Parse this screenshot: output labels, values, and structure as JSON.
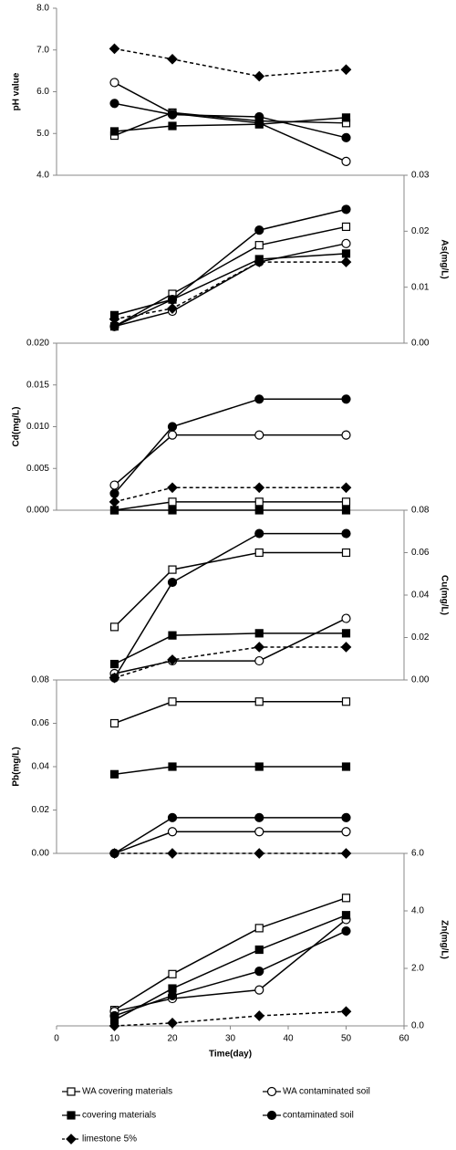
{
  "chart_data": [
    {
      "type": "line",
      "y_label": "pH value",
      "y_axis_side": "left",
      "x": [
        10,
        20,
        35,
        50
      ],
      "ylim": [
        4,
        8
      ],
      "yticks": [
        {
          "value": 4,
          "label": "4.0"
        },
        {
          "value": 5,
          "label": "5.0"
        },
        {
          "value": 6,
          "label": "6.0"
        },
        {
          "value": 7,
          "label": "7.0"
        },
        {
          "value": 8,
          "label": "8.0"
        }
      ],
      "series": [
        {
          "name": "WA covering materials",
          "color": "#000000",
          "marker": "square",
          "filled": false,
          "dashed": false,
          "values": [
            4.95,
            5.5,
            5.3,
            5.25
          ]
        },
        {
          "name": "WA contaminated soil",
          "color": "#000000",
          "marker": "circle",
          "filled": false,
          "dashed": false,
          "values": [
            6.22,
            5.48,
            5.25,
            4.33
          ]
        },
        {
          "name": "covering materials",
          "color": "#000000",
          "marker": "square",
          "filled": true,
          "dashed": false,
          "values": [
            5.05,
            5.18,
            5.22,
            5.38
          ]
        },
        {
          "name": "contaminated soil",
          "color": "#000000",
          "marker": "circle",
          "filled": true,
          "dashed": false,
          "values": [
            5.72,
            5.45,
            5.4,
            4.9
          ]
        },
        {
          "name": "limestone 5%",
          "color": "#000000",
          "marker": "diamond",
          "filled": true,
          "dashed": true,
          "values": [
            7.03,
            6.78,
            6.37,
            6.53
          ]
        }
      ]
    },
    {
      "type": "line",
      "y_label": "As(mg/L)",
      "y_axis_side": "right",
      "x": [
        10,
        20,
        35,
        50
      ],
      "ylim": [
        0,
        0.03
      ],
      "yticks": [
        {
          "value": 0,
          "label": "0.00"
        },
        {
          "value": 0.01,
          "label": "0.01"
        },
        {
          "value": 0.02,
          "label": "0.02"
        },
        {
          "value": 0.03,
          "label": "0.03"
        }
      ],
      "series": [
        {
          "name": "WA covering materials",
          "color": "#000000",
          "marker": "square",
          "filled": false,
          "dashed": false,
          "values": [
            0.003,
            0.0088,
            0.0175,
            0.0208
          ]
        },
        {
          "name": "WA contaminated soil",
          "color": "#000000",
          "marker": "circle",
          "filled": false,
          "dashed": false,
          "values": [
            0.003,
            0.0057,
            0.0145,
            0.0178
          ]
        },
        {
          "name": "covering materials",
          "color": "#000000",
          "marker": "square",
          "filled": true,
          "dashed": false,
          "values": [
            0.005,
            0.0078,
            0.015,
            0.016
          ]
        },
        {
          "name": "contaminated soil",
          "color": "#000000",
          "marker": "circle",
          "filled": true,
          "dashed": false,
          "values": [
            0.003,
            0.0078,
            0.0202,
            0.0239
          ]
        },
        {
          "name": "limestone 5%",
          "color": "#000000",
          "marker": "diamond",
          "filled": true,
          "dashed": true,
          "values": [
            0.0043,
            0.0062,
            0.0145,
            0.0145
          ]
        }
      ]
    },
    {
      "type": "line",
      "y_label": "Cd(mg/L)",
      "y_axis_side": "left",
      "x": [
        10,
        20,
        35,
        50
      ],
      "ylim": [
        0,
        0.02
      ],
      "yticks": [
        {
          "value": 0,
          "label": "0.000"
        },
        {
          "value": 0.005,
          "label": "0.005"
        },
        {
          "value": 0.01,
          "label": "0.010"
        },
        {
          "value": 0.015,
          "label": "0.015"
        },
        {
          "value": 0.02,
          "label": "0.020"
        }
      ],
      "series": [
        {
          "name": "WA covering materials",
          "color": "#000000",
          "marker": "square",
          "filled": false,
          "dashed": false,
          "values": [
            0,
            0.001,
            0.001,
            0.001
          ]
        },
        {
          "name": "WA contaminated soil",
          "color": "#000000",
          "marker": "circle",
          "filled": false,
          "dashed": false,
          "values": [
            0.003,
            0.009,
            0.009,
            0.009
          ]
        },
        {
          "name": "covering materials",
          "color": "#000000",
          "marker": "square",
          "filled": true,
          "dashed": false,
          "values": [
            0,
            0,
            0,
            0
          ]
        },
        {
          "name": "contaminated soil",
          "color": "#000000",
          "marker": "circle",
          "filled": true,
          "dashed": false,
          "values": [
            0.002,
            0.01,
            0.0133,
            0.0133
          ]
        },
        {
          "name": "limestone 5%",
          "color": "#000000",
          "marker": "diamond",
          "filled": true,
          "dashed": true,
          "values": [
            0.001,
            0.0027,
            0.0027,
            0.0027
          ]
        }
      ]
    },
    {
      "type": "line",
      "y_label": "Cu(mg/L)",
      "y_axis_side": "right",
      "x": [
        10,
        20,
        35,
        50
      ],
      "ylim": [
        0,
        0.08
      ],
      "yticks": [
        {
          "value": 0,
          "label": "0.00"
        },
        {
          "value": 0.02,
          "label": "0.02"
        },
        {
          "value": 0.04,
          "label": "0.04"
        },
        {
          "value": 0.06,
          "label": "0.06"
        },
        {
          "value": 0.08,
          "label": "0.08"
        }
      ],
      "series": [
        {
          "name": "WA covering materials",
          "color": "#000000",
          "marker": "square",
          "filled": false,
          "dashed": false,
          "values": [
            0.025,
            0.052,
            0.06,
            0.06
          ]
        },
        {
          "name": "WA contaminated soil",
          "color": "#000000",
          "marker": "circle",
          "filled": false,
          "dashed": false,
          "values": [
            0.003,
            0.009,
            0.009,
            0.029
          ]
        },
        {
          "name": "covering materials",
          "color": "#000000",
          "marker": "square",
          "filled": true,
          "dashed": false,
          "values": [
            0.0075,
            0.021,
            0.022,
            0.022
          ]
        },
        {
          "name": "contaminated soil",
          "color": "#000000",
          "marker": "circle",
          "filled": true,
          "dashed": false,
          "values": [
            0.001,
            0.046,
            0.069,
            0.069
          ]
        },
        {
          "name": "limestone 5%",
          "color": "#000000",
          "marker": "diamond",
          "filled": true,
          "dashed": true,
          "values": [
            0.001,
            0.0095,
            0.0155,
            0.0155
          ]
        }
      ]
    },
    {
      "type": "line",
      "y_label": "Pb(mg/L)",
      "y_axis_side": "left",
      "x": [
        10,
        20,
        35,
        50
      ],
      "ylim": [
        0,
        0.08
      ],
      "yticks": [
        {
          "value": 0,
          "label": "0.00"
        },
        {
          "value": 0.02,
          "label": "0.02"
        },
        {
          "value": 0.04,
          "label": "0.04"
        },
        {
          "value": 0.06,
          "label": "0.06"
        },
        {
          "value": 0.08,
          "label": "0.08"
        }
      ],
      "series": [
        {
          "name": "WA covering materials",
          "color": "#000000",
          "marker": "square",
          "filled": false,
          "dashed": false,
          "values": [
            0.06,
            0.07,
            0.07,
            0.07
          ]
        },
        {
          "name": "WA contaminated soil",
          "color": "#000000",
          "marker": "circle",
          "filled": false,
          "dashed": false,
          "values": [
            0,
            0.01,
            0.01,
            0.01
          ]
        },
        {
          "name": "covering materials",
          "color": "#000000",
          "marker": "square",
          "filled": true,
          "dashed": false,
          "values": [
            0.0365,
            0.04,
            0.04,
            0.04
          ]
        },
        {
          "name": "contaminated soil",
          "color": "#000000",
          "marker": "circle",
          "filled": true,
          "dashed": false,
          "values": [
            0,
            0.0165,
            0.0165,
            0.0165
          ]
        },
        {
          "name": "limestone 5%",
          "color": "#000000",
          "marker": "diamond",
          "filled": true,
          "dashed": true,
          "values": [
            0,
            0,
            0,
            0
          ]
        }
      ]
    },
    {
      "type": "line",
      "y_label": "Zn(mg/L)",
      "y_axis_side": "right",
      "x_label": "Time(day)",
      "x": [
        10,
        20,
        35,
        50
      ],
      "xlim": [
        0,
        60
      ],
      "xticks": [
        0,
        10,
        20,
        30,
        40,
        50,
        60
      ],
      "ylim": [
        0,
        6
      ],
      "yticks": [
        {
          "value": 0,
          "label": "0.0"
        },
        {
          "value": 2,
          "label": "2.0"
        },
        {
          "value": 4,
          "label": "4.0"
        },
        {
          "value": 6,
          "label": "6.0"
        }
      ],
      "series": [
        {
          "name": "WA covering materials",
          "color": "#000000",
          "marker": "square",
          "filled": false,
          "dashed": false,
          "values": [
            0.55,
            1.8,
            3.4,
            4.45
          ]
        },
        {
          "name": "WA contaminated soil",
          "color": "#000000",
          "marker": "circle",
          "filled": false,
          "dashed": false,
          "values": [
            0.5,
            0.95,
            1.25,
            3.7
          ]
        },
        {
          "name": "covering materials",
          "color": "#000000",
          "marker": "square",
          "filled": true,
          "dashed": false,
          "values": [
            0.2,
            1.3,
            2.65,
            3.85
          ]
        },
        {
          "name": "contaminated soil",
          "color": "#000000",
          "marker": "circle",
          "filled": true,
          "dashed": false,
          "values": [
            0.35,
            1.05,
            1.9,
            3.3
          ]
        },
        {
          "name": "limestone 5%",
          "color": "#000000",
          "marker": "diamond",
          "filled": true,
          "dashed": true,
          "values": [
            0,
            0.1,
            0.35,
            0.5
          ]
        }
      ]
    }
  ]
}
